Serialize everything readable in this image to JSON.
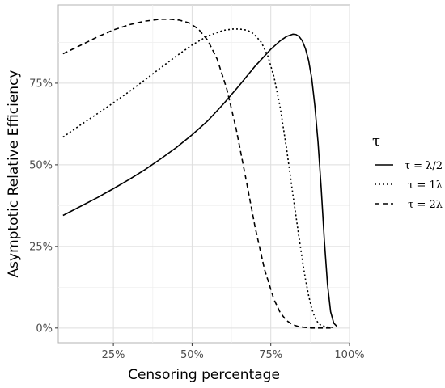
{
  "chart_data": {
    "type": "line",
    "xlabel": "Censoring percentage",
    "ylabel": "Asymptotic Relative Efficiency",
    "x_ticks": [
      {
        "value": 25,
        "label": "25%"
      },
      {
        "value": 50,
        "label": "50%"
      },
      {
        "value": 75,
        "label": "75%"
      },
      {
        "value": 100,
        "label": "100%"
      }
    ],
    "y_ticks": [
      {
        "value": 0,
        "label": "0%"
      },
      {
        "value": 25,
        "label": "25%"
      },
      {
        "value": 50,
        "label": "50%"
      },
      {
        "value": 75,
        "label": "75%"
      }
    ],
    "xlim": [
      7.5,
      100
    ],
    "ylim": [
      -4.5,
      99
    ],
    "grid": true,
    "legend": {
      "title": "τ",
      "position": "right",
      "entries": [
        {
          "label": "τ = λ/2",
          "linetype": "solid"
        },
        {
          "label": "τ = 1λ",
          "linetype": "dotted"
        },
        {
          "label": "τ = 2λ",
          "linetype": "dashed"
        }
      ]
    },
    "series": [
      {
        "name": "τ = λ/2",
        "linetype": "solid",
        "x": [
          9,
          15,
          20,
          25,
          30,
          35,
          40,
          45,
          50,
          55,
          60,
          65,
          70,
          75,
          78,
          80,
          82,
          83,
          84,
          85,
          86,
          87,
          88,
          89,
          90,
          91,
          92,
          93,
          94,
          95,
          96
        ],
        "y": [
          34.5,
          37.5,
          40,
          42.7,
          45.5,
          48.5,
          51.8,
          55.3,
          59.2,
          63.5,
          68.7,
          74.3,
          80.2,
          85.4,
          88,
          89.3,
          90,
          89.9,
          89.3,
          88,
          85.6,
          82,
          76.5,
          68,
          57,
          43,
          27,
          13.5,
          5,
          1.5,
          0.5
        ]
      },
      {
        "name": "τ = 1λ",
        "linetype": "dotted",
        "x": [
          9,
          15,
          20,
          25,
          30,
          35,
          40,
          45,
          50,
          55,
          60,
          63,
          65,
          67,
          68,
          69,
          70,
          72,
          74,
          76,
          78,
          80,
          82,
          84,
          85,
          86,
          87,
          88,
          89,
          90,
          91,
          93,
          95
        ],
        "y": [
          58.5,
          62.5,
          65.7,
          69,
          72.4,
          76,
          79.7,
          83.3,
          86.7,
          89.5,
          91.2,
          91.6,
          91.6,
          91.3,
          91,
          90.5,
          89.7,
          87.5,
          83.5,
          77,
          67.5,
          55,
          41,
          27.5,
          21,
          15,
          10,
          6,
          3.2,
          1.6,
          0.8,
          0.3,
          0.2
        ]
      },
      {
        "name": "τ = 2λ",
        "linetype": "dashed",
        "x": [
          9,
          15,
          20,
          25,
          30,
          35,
          40,
          43,
          46,
          49,
          52,
          55,
          58,
          61,
          64,
          67,
          70,
          73,
          76,
          78,
          80,
          82,
          84,
          86,
          88,
          90,
          92,
          94
        ],
        "y": [
          84,
          86.8,
          89.2,
          91.3,
          92.9,
          94,
          94.6,
          94.6,
          94.3,
          93.5,
          91.6,
          88.1,
          82.3,
          73.3,
          61,
          46.2,
          31,
          18,
          8.8,
          4.7,
          2.3,
          1,
          0.4,
          0.2,
          0,
          0,
          0,
          0
        ]
      }
    ]
  }
}
